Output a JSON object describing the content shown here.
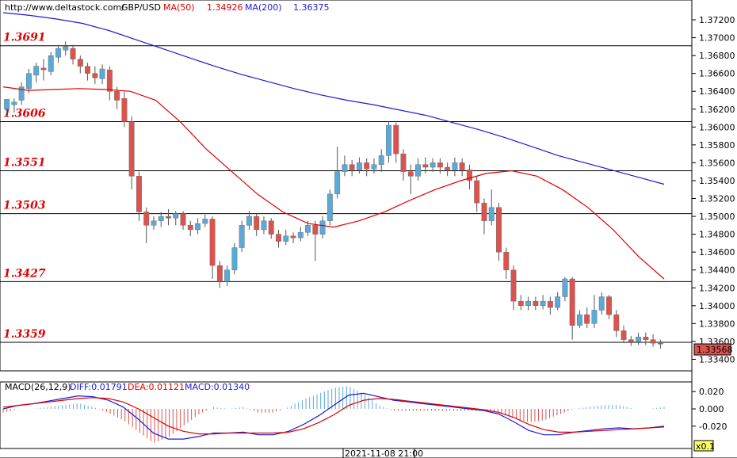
{
  "header": {
    "site": "http://www.deltastock.com/",
    "symbol": "GBP/USD",
    "ma50_label": "MA(50)",
    "ma50_value": "1.34926",
    "ma200_label": "MA(200)",
    "ma200_value": "1.36375"
  },
  "macd_header": {
    "title": "MACD(26,12,9)",
    "diff": "DIFF:0.01791",
    "dea": "DEA:0.01121",
    "macd": "MACD:0.01340"
  },
  "bottom": {
    "date_label": "2021-11-08 21:00",
    "zoom": "x0.1"
  },
  "colors": {
    "up": "#5aa9d6",
    "down": "#d9534f",
    "ma50": "#e00000",
    "ma200": "#1a1ad8",
    "level_text": "#e00000",
    "diff_line": "#1a1ad8",
    "dea_line": "#e00000"
  },
  "chart_data": [
    {
      "type": "candlestick",
      "title": "GBP/USD",
      "ylim": [
        1.3333,
        1.3738
      ],
      "y_ticks": [
        "1.37200",
        "1.37000",
        "1.36800",
        "1.36600",
        "1.36400",
        "1.36200",
        "1.36000",
        "1.35800",
        "1.35600",
        "1.35400",
        "1.35200",
        "1.35000",
        "1.34800",
        "1.34600",
        "1.34400",
        "1.34200",
        "1.34000",
        "1.33800",
        "1.33600",
        "1.33400"
      ],
      "last_price": "1.33568",
      "levels": [
        "1.3691",
        "1.3606",
        "1.3551",
        "1.3503",
        "1.3427",
        "1.3359"
      ],
      "series": [
        {
          "name": "MA(50)",
          "values": [
            1.3645,
            1.3641,
            1.3642,
            1.3643,
            1.3642,
            1.364,
            1.363,
            1.3605,
            1.3575,
            1.355,
            1.3525,
            1.3505,
            1.3492,
            1.3488,
            1.3495,
            1.3505,
            1.3518,
            1.353,
            1.354,
            1.3548,
            1.3551,
            1.3545,
            1.353,
            1.351,
            1.3485,
            1.3455,
            1.343
          ]
        },
        {
          "name": "MA(200)",
          "values": [
            1.3728,
            1.3725,
            1.3721,
            1.3716,
            1.3708,
            1.3698,
            1.3688,
            1.3678,
            1.3668,
            1.3659,
            1.3651,
            1.3643,
            1.3636,
            1.363,
            1.3625,
            1.3619,
            1.3613,
            1.3605,
            1.3597,
            1.3588,
            1.3578,
            1.3568,
            1.356,
            1.3552,
            1.3544,
            1.3536
          ]
        }
      ],
      "candles": [
        [
          1.362,
          1.3631,
          1.3628,
          1.3612
        ],
        [
          1.3625,
          1.3628,
          1.3632,
          1.3616
        ],
        [
          1.363,
          1.3645,
          1.365,
          1.3625
        ],
        [
          1.3643,
          1.366,
          1.3665,
          1.3638
        ],
        [
          1.3658,
          1.3668,
          1.3672,
          1.365
        ],
        [
          1.3666,
          1.3664,
          1.3676,
          1.3652
        ],
        [
          1.3662,
          1.368,
          1.3684,
          1.3658
        ],
        [
          1.3678,
          1.3688,
          1.3692,
          1.3672
        ],
        [
          1.3686,
          1.369,
          1.3696,
          1.368
        ],
        [
          1.3688,
          1.3676,
          1.3692,
          1.367
        ],
        [
          1.3676,
          1.3668,
          1.368,
          1.366
        ],
        [
          1.3668,
          1.366,
          1.3672,
          1.3652
        ],
        [
          1.366,
          1.3655,
          1.3668,
          1.3648
        ],
        [
          1.3654,
          1.3665,
          1.367,
          1.3648
        ],
        [
          1.3664,
          1.364,
          1.3668,
          1.363
        ],
        [
          1.364,
          1.363,
          1.3645,
          1.362
        ],
        [
          1.3632,
          1.3606,
          1.364,
          1.36
        ],
        [
          1.3606,
          1.3545,
          1.3612,
          1.353
        ],
        [
          1.3545,
          1.3505,
          1.355,
          1.3495
        ],
        [
          1.3505,
          1.349,
          1.351,
          1.347
        ],
        [
          1.349,
          1.3495,
          1.35,
          1.3485
        ],
        [
          1.3495,
          1.35,
          1.3505,
          1.3488
        ],
        [
          1.35,
          1.3498,
          1.3508,
          1.349
        ],
        [
          1.3498,
          1.3503,
          1.3506,
          1.349
        ],
        [
          1.3503,
          1.349,
          1.3506,
          1.3485
        ],
        [
          1.349,
          1.3485,
          1.3495,
          1.3478
        ],
        [
          1.3485,
          1.3492,
          1.3498,
          1.348
        ],
        [
          1.3492,
          1.3497,
          1.3502,
          1.3488
        ],
        [
          1.3497,
          1.3445,
          1.35,
          1.343
        ],
        [
          1.3445,
          1.3427,
          1.345,
          1.342
        ],
        [
          1.3427,
          1.344,
          1.3445,
          1.3422
        ],
        [
          1.344,
          1.3465,
          1.347,
          1.3435
        ],
        [
          1.3465,
          1.349,
          1.3495,
          1.346
        ],
        [
          1.349,
          1.35,
          1.3506,
          1.3485
        ],
        [
          1.35,
          1.3485,
          1.3503,
          1.3478
        ],
        [
          1.3485,
          1.3495,
          1.35,
          1.348
        ],
        [
          1.3495,
          1.348,
          1.3498,
          1.3475
        ],
        [
          1.348,
          1.3472,
          1.3485,
          1.3465
        ],
        [
          1.3472,
          1.3478,
          1.3485,
          1.3468
        ],
        [
          1.3478,
          1.3476,
          1.3482,
          1.347
        ],
        [
          1.3476,
          1.3482,
          1.3488,
          1.3472
        ],
        [
          1.3482,
          1.349,
          1.3495,
          1.3478
        ],
        [
          1.349,
          1.348,
          1.3495,
          1.345
        ],
        [
          1.348,
          1.3495,
          1.35,
          1.3475
        ],
        [
          1.3495,
          1.3525,
          1.353,
          1.349
        ],
        [
          1.3525,
          1.355,
          1.3578,
          1.352
        ],
        [
          1.355,
          1.3558,
          1.3568,
          1.3545
        ],
        [
          1.3558,
          1.3552,
          1.3563,
          1.3545
        ],
        [
          1.3552,
          1.356,
          1.3566,
          1.3548
        ],
        [
          1.356,
          1.3553,
          1.3565,
          1.3545
        ],
        [
          1.3553,
          1.3558,
          1.3565,
          1.3548
        ],
        [
          1.3558,
          1.3568,
          1.3575,
          1.355
        ],
        [
          1.3568,
          1.3602,
          1.3606,
          1.356
        ],
        [
          1.3602,
          1.357,
          1.3605,
          1.356
        ],
        [
          1.357,
          1.355,
          1.3575,
          1.354
        ],
        [
          1.355,
          1.3545,
          1.3558,
          1.3525
        ],
        [
          1.3545,
          1.3558,
          1.3565,
          1.354
        ],
        [
          1.3558,
          1.3555,
          1.3566,
          1.3548
        ],
        [
          1.3555,
          1.356,
          1.3565,
          1.355
        ],
        [
          1.356,
          1.3555,
          1.3565,
          1.3548
        ],
        [
          1.3555,
          1.3552,
          1.356,
          1.3545
        ],
        [
          1.3552,
          1.356,
          1.3566,
          1.3545
        ],
        [
          1.356,
          1.3552,
          1.3565,
          1.3545
        ],
        [
          1.3552,
          1.354,
          1.3558,
          1.353
        ],
        [
          1.354,
          1.3515,
          1.3545,
          1.3505
        ],
        [
          1.3515,
          1.3495,
          1.352,
          1.348
        ],
        [
          1.3495,
          1.351,
          1.353,
          1.349
        ],
        [
          1.351,
          1.346,
          1.3515,
          1.345
        ],
        [
          1.346,
          1.344,
          1.3465,
          1.343
        ],
        [
          1.344,
          1.3405,
          1.3445,
          1.3395
        ],
        [
          1.3405,
          1.34,
          1.3412,
          1.3395
        ],
        [
          1.34,
          1.3405,
          1.341,
          1.3395
        ],
        [
          1.3405,
          1.34,
          1.341,
          1.3395
        ],
        [
          1.34,
          1.3405,
          1.3412,
          1.3396
        ],
        [
          1.3405,
          1.3398,
          1.341,
          1.339
        ],
        [
          1.3398,
          1.341,
          1.3415,
          1.3395
        ],
        [
          1.341,
          1.343,
          1.3432,
          1.3405
        ],
        [
          1.343,
          1.3378,
          1.3432,
          1.3362
        ],
        [
          1.3378,
          1.339,
          1.3395,
          1.3375
        ],
        [
          1.339,
          1.338,
          1.3398,
          1.3375
        ],
        [
          1.338,
          1.3395,
          1.3412,
          1.3375
        ],
        [
          1.3395,
          1.341,
          1.3415,
          1.339
        ],
        [
          1.341,
          1.339,
          1.3412,
          1.3385
        ],
        [
          1.339,
          1.3372,
          1.3395,
          1.3365
        ],
        [
          1.3372,
          1.3362,
          1.3378,
          1.3358
        ],
        [
          1.3362,
          1.336,
          1.3366,
          1.3355
        ],
        [
          1.336,
          1.3365,
          1.337,
          1.3356
        ],
        [
          1.3365,
          1.3362,
          1.337,
          1.3356
        ],
        [
          1.3362,
          1.3358,
          1.3368,
          1.3354
        ],
        [
          1.3358,
          1.3357,
          1.3362,
          1.3352
        ]
      ]
    },
    {
      "type": "macd",
      "title": "MACD(26,12,9)",
      "ylim": [
        -0.038,
        0.028
      ],
      "y_ticks": [
        "0.020",
        "0.000",
        "-0.020"
      ],
      "series": [
        {
          "name": "DIFF",
          "values": [
            0.0,
            0.004,
            0.006,
            0.009,
            0.012,
            0.015,
            0.014,
            0.01,
            0.002,
            -0.012,
            -0.028,
            -0.035,
            -0.035,
            -0.032,
            -0.028,
            -0.028,
            -0.027,
            -0.03,
            -0.03,
            -0.026,
            -0.018,
            -0.008,
            0.004,
            0.016,
            0.018,
            0.014,
            0.01,
            0.008,
            0.006,
            0.004,
            0.002,
            0.0,
            -0.002,
            -0.006,
            -0.015,
            -0.025,
            -0.03,
            -0.03,
            -0.027,
            -0.025,
            -0.023,
            -0.022,
            -0.023,
            -0.022,
            -0.02
          ]
        },
        {
          "name": "DEA",
          "values": [
            0.002,
            0.004,
            0.006,
            0.008,
            0.01,
            0.012,
            0.013,
            0.012,
            0.008,
            0.0,
            -0.01,
            -0.02,
            -0.026,
            -0.029,
            -0.029,
            -0.028,
            -0.028,
            -0.028,
            -0.028,
            -0.027,
            -0.023,
            -0.016,
            -0.007,
            0.004,
            0.01,
            0.012,
            0.011,
            0.009,
            0.007,
            0.005,
            0.003,
            0.001,
            -0.001,
            -0.004,
            -0.01,
            -0.018,
            -0.024,
            -0.027,
            -0.027,
            -0.026,
            -0.025,
            -0.024,
            -0.023,
            -0.022,
            -0.021
          ]
        }
      ]
    }
  ]
}
